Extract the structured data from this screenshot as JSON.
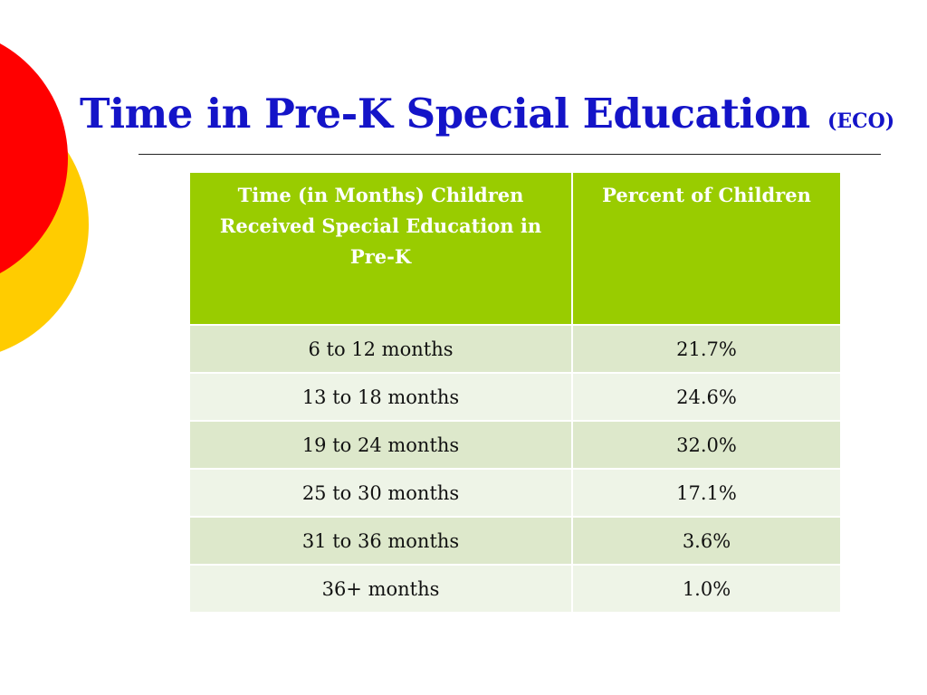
{
  "slide": {
    "title": "Time in Pre-K Special Education",
    "title_suffix": "(ECO)"
  },
  "table": {
    "headers": [
      "Time (in Months) Children Received Special Education in Pre-K",
      "Percent of Children"
    ],
    "rows": [
      [
        "6 to 12 months",
        "21.7%"
      ],
      [
        "13 to 18 months",
        "24.6%"
      ],
      [
        "19 to 24 months",
        "32.0%"
      ],
      [
        "25 to 30 months",
        "17.1%"
      ],
      [
        "31 to 36 months",
        "3.6%"
      ],
      [
        "36+ months",
        "1.0%"
      ]
    ]
  },
  "colors": {
    "title": "#1414c8",
    "header_bg": "#99cc00",
    "row_dark": "#dde8cb",
    "row_light": "#eef4e7",
    "circle_red": "#ff0000",
    "circle_yellow": "#ffcc00"
  }
}
